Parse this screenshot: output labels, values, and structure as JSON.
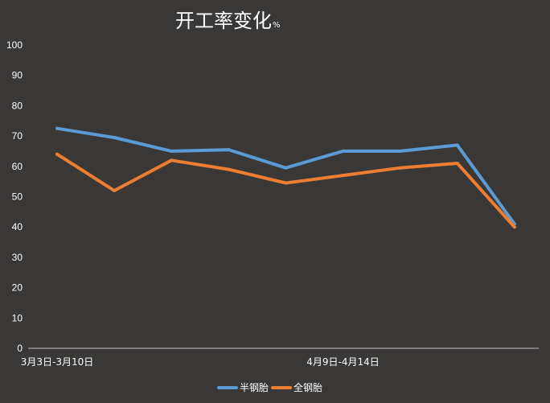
{
  "chart_data": {
    "type": "line",
    "title": "开工率变化",
    "title_unit": "%",
    "xlabel": "",
    "ylabel": "",
    "ylim": [
      0,
      100
    ],
    "yticks": [
      0,
      10,
      20,
      30,
      40,
      50,
      60,
      70,
      80,
      90,
      100
    ],
    "x_tick_labels": [
      {
        "index": 0,
        "label": "3月3日-3月10日"
      },
      {
        "index": 5,
        "label": "4月9日-4月14日"
      }
    ],
    "point_count": 9,
    "grid": false,
    "legend_position": "bottom",
    "series": [
      {
        "name": "半钢胎",
        "color": "#5b9bd5",
        "values": [
          72.5,
          69.5,
          65,
          65.5,
          59.5,
          65,
          65,
          67,
          41
        ]
      },
      {
        "name": "全钢胎",
        "color": "#ed7d31",
        "values": [
          64,
          52,
          62,
          59,
          54.5,
          57,
          59.5,
          61,
          40
        ]
      }
    ]
  }
}
